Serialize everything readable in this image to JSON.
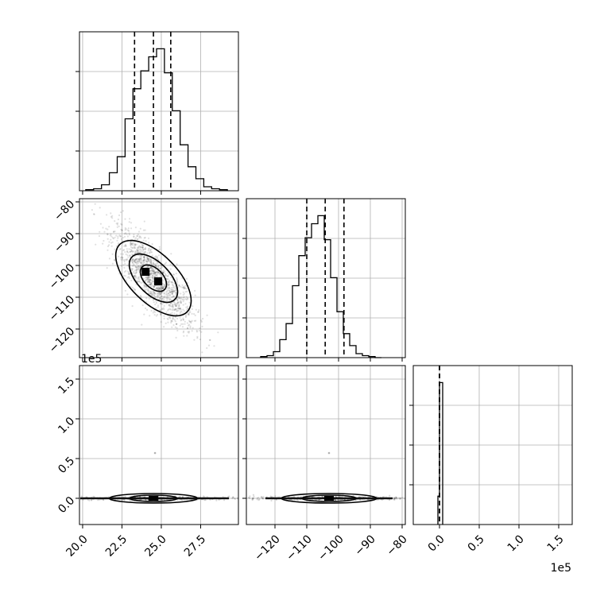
{
  "chart_data": {
    "type": "corner",
    "parameters": [
      {
        "ticks": [
          20.0,
          22.5,
          25.0,
          27.5
        ],
        "tick_labels": [
          "20.0",
          "22.5",
          "25.0",
          "27.5"
        ],
        "range": [
          19.8,
          29.9
        ]
      },
      {
        "ticks": [
          -120,
          -110,
          -100,
          -90,
          -80
        ],
        "tick_labels": [
          "−120",
          "−110",
          "−100",
          "−90",
          "−80"
        ],
        "range": [
          -129.0,
          -79.0
        ]
      },
      {
        "ticks": [
          0.0,
          0.5,
          1.0,
          1.5
        ],
        "tick_labels": [
          "0.0",
          "0.5",
          "1.0",
          "1.5"
        ],
        "range": [
          -0.33,
          1.67
        ],
        "multiplier": "1e5"
      }
    ],
    "histograms": [
      {
        "parameter": 0,
        "bin_edges": [
          20.2,
          20.7,
          21.2,
          21.7,
          22.2,
          22.7,
          23.2,
          23.7,
          24.2,
          24.7,
          25.2,
          25.7,
          26.2,
          26.7,
          27.2,
          27.7,
          28.2,
          28.7,
          29.2
        ],
        "counts": [
          0.5,
          1,
          3,
          9,
          17,
          36,
          51,
          60,
          67,
          71,
          59,
          40,
          23,
          12,
          6,
          2,
          1,
          0.5
        ],
        "quantiles": [
          23.3,
          24.5,
          25.6
        ]
      },
      {
        "parameter": 1,
        "bin_edges": [
          -124.5,
          -122.5,
          -120.5,
          -118.5,
          -116.5,
          -114.5,
          -112.5,
          -110.5,
          -108.5,
          -106.5,
          -104.5,
          -102.5,
          -100.5,
          -98.5,
          -96.5,
          -94.5,
          -92.5,
          -90.5,
          -88.5,
          -86.5
        ],
        "counts": [
          0.5,
          1,
          3,
          9,
          17,
          36,
          51,
          60,
          67,
          71,
          59,
          40,
          23,
          12,
          6,
          2,
          1,
          0.5,
          0
        ],
        "quantiles": [
          -110.0,
          -104.2,
          -98.3
        ]
      },
      {
        "parameter": 2,
        "bin_edges": [
          -0.02,
          0.0,
          0.02,
          0.04
        ],
        "counts": [
          0.2,
          1,
          1
        ],
        "quantiles": [
          0.0,
          0.0
        ]
      }
    ],
    "pairs": [
      {
        "x_parameter": 0,
        "y_parameter": 1,
        "center": [
          24.5,
          -104.0
        ],
        "contours": [
          {
            "rx": 2.9,
            "ry": 17.0,
            "angle": -44,
            "fill": "#f4f4f4"
          },
          {
            "rx": 1.75,
            "ry": 9.8,
            "angle": -44,
            "fill": "#a4a4a4"
          },
          {
            "rx": 0.85,
            "ry": 5.0,
            "angle": -44,
            "fill": "#5e5e5e"
          }
        ],
        "core_cells": [
          [
            24.0,
            -102.0
          ],
          [
            24.8,
            -105.0
          ]
        ],
        "scatter_spread": [
          1.3,
          8.0
        ],
        "correlation": -0.82
      },
      {
        "x_parameter": 0,
        "y_parameter": 2,
        "center": [
          24.5,
          0.0
        ],
        "contours": [
          {
            "rx": 2.8,
            "ry": 0.06,
            "angle": 0,
            "fill": "#f0f0f0"
          },
          {
            "rx": 1.5,
            "ry": 0.04,
            "angle": 0,
            "fill": "#b0b0b0"
          }
        ],
        "outlier": [
          24.6,
          0.57
        ]
      },
      {
        "x_parameter": 1,
        "y_parameter": 2,
        "center": [
          -103.0,
          0.0
        ],
        "contours": [
          {
            "rx": 15.0,
            "ry": 0.06,
            "angle": 0,
            "fill": "#f0f0f0"
          },
          {
            "rx": 8.5,
            "ry": 0.04,
            "angle": 0,
            "fill": "#a8a8a8"
          }
        ],
        "outlier": [
          -103.0,
          0.57
        ]
      }
    ],
    "grid": true
  }
}
